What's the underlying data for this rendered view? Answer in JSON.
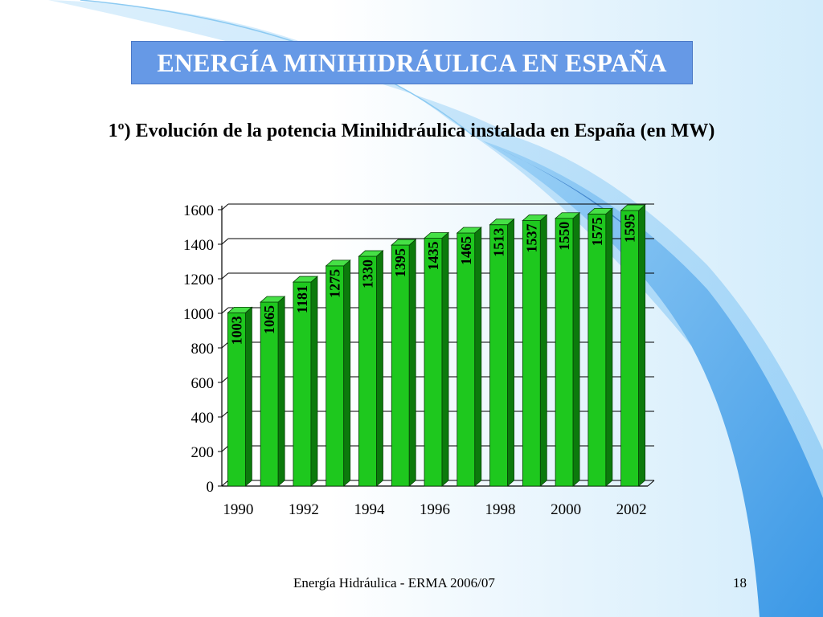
{
  "slide": {
    "title": "ENERGÍA MINIHIDRÁULICA EN ESPAÑA",
    "subtitle": "1º) Evolución de la potencia Minihidráulica instalada en España (en MW)",
    "footer": "Energía Hidráulica - ERMA 2006/07",
    "page_number": "18"
  },
  "colors": {
    "title_bg": "#6699e6",
    "bar_front": "#1ec81e",
    "bar_side": "#0c7a0c",
    "bar_top": "#46e046",
    "accent_blue": "#5fb0f0"
  },
  "chart_data": {
    "type": "bar",
    "style": "3d-columns",
    "title": "",
    "xlabel": "",
    "ylabel": "",
    "categories": [
      "1990",
      "1991",
      "1992",
      "1993",
      "1994",
      "1995",
      "1996",
      "1997",
      "1998",
      "1999",
      "2000",
      "2001",
      "2002"
    ],
    "x_tick_labels": [
      "1990",
      "1992",
      "1994",
      "1996",
      "1998",
      "2000",
      "2002"
    ],
    "values": [
      1003,
      1065,
      1181,
      1275,
      1330,
      1395,
      1435,
      1465,
      1513,
      1537,
      1550,
      1575,
      1595
    ],
    "data_labels": [
      "1003",
      "1065",
      "1181",
      "1275",
      "1330",
      "1395",
      "1435",
      "1465",
      "1513",
      "1537",
      "1550",
      "1575",
      "1595"
    ],
    "ylim": [
      0,
      1600
    ],
    "y_ticks": [
      0,
      200,
      400,
      600,
      800,
      1000,
      1200,
      1400,
      1600
    ],
    "grid": true,
    "legend": "none"
  }
}
